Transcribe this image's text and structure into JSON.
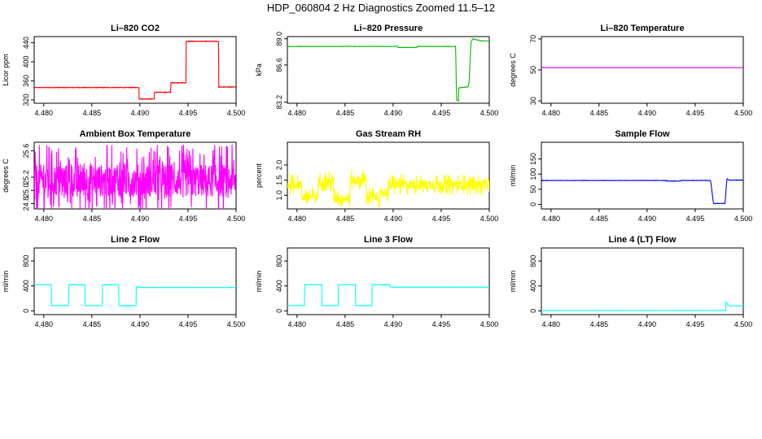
{
  "page_title": "HDP_060804  2 Hz Diagnostics Zoomed 11.5–12",
  "chart_data": [
    {
      "type": "line",
      "title": "Li–820 CO2",
      "ylabel": "Licor ppm",
      "color": "#ff0000",
      "xlim": [
        4.479,
        4.5
      ],
      "ylim": [
        313,
        453
      ],
      "xticks": [
        "4.480",
        "4.485",
        "4.490",
        "4.495",
        "4.500"
      ],
      "xtick_values": [
        4.48,
        4.485,
        4.49,
        4.495,
        4.5
      ],
      "yticks": [
        "320",
        "360",
        "400",
        "440"
      ],
      "ytick_values": [
        320,
        360,
        400,
        440
      ],
      "noise": 1.2,
      "series": [
        {
          "x": [
            4.479,
            4.4899,
            4.4899,
            4.4915,
            4.4915,
            4.4932,
            4.4932,
            4.4948,
            4.4948,
            4.4982,
            4.4982,
            4.5
          ],
          "y": [
            346,
            346,
            322,
            322,
            336,
            336,
            356,
            356,
            443,
            443,
            347,
            347
          ]
        }
      ]
    },
    {
      "type": "line",
      "title": "Li–820 Pressure",
      "ylabel": "kPa",
      "color": "#00bb00",
      "xlim": [
        4.479,
        4.5
      ],
      "ylim": [
        83.1,
        89.2
      ],
      "xticks": [
        "4.480",
        "4.485",
        "4.490",
        "4.495",
        "4.500"
      ],
      "xtick_values": [
        4.48,
        4.485,
        4.49,
        4.495,
        4.5
      ],
      "yticks": [
        "83.2",
        "86.6",
        "89.0"
      ],
      "ytick_values": [
        83.2,
        86.6,
        89.0
      ],
      "noise": 0.03,
      "series": [
        {
          "x": [
            4.479,
            4.4905,
            4.4905,
            4.4925,
            4.4925,
            4.4965,
            4.4966,
            4.4968,
            4.4968,
            4.4978,
            4.4979,
            4.4981,
            4.4983,
            4.4992,
            4.5
          ],
          "y": [
            88.3,
            88.3,
            88.2,
            88.2,
            88.3,
            88.3,
            83.4,
            83.3,
            84.5,
            84.6,
            85.0,
            88.7,
            89.0,
            88.8,
            88.8
          ]
        }
      ]
    },
    {
      "type": "line",
      "title": "Li–820 Temperature",
      "ylabel": "degrees C",
      "color": "#cc00cc",
      "xlim": [
        4.479,
        4.5
      ],
      "ylim": [
        28.5,
        71.5
      ],
      "xticks": [
        "4.480",
        "4.485",
        "4.490",
        "4.495",
        "4.500"
      ],
      "xtick_values": [
        4.48,
        4.485,
        4.49,
        4.495,
        4.5
      ],
      "yticks": [
        "30",
        "50",
        "70"
      ],
      "ytick_values": [
        30,
        50,
        70
      ],
      "noise": 0,
      "series": [
        {
          "x": [
            4.479,
            4.5
          ],
          "y": [
            51.5,
            51.5
          ]
        }
      ]
    },
    {
      "type": "line",
      "title": "Ambient Box Temperature",
      "ylabel": "degrees C",
      "color": "#ff00ff",
      "xlim": [
        4.479,
        4.5
      ],
      "ylim": [
        24.72,
        25.73
      ],
      "xticks": [
        "4.480",
        "4.485",
        "4.490",
        "4.495",
        "4.500"
      ],
      "xtick_values": [
        4.48,
        4.485,
        4.49,
        4.495,
        4.5
      ],
      "yticks": [
        "24.8",
        "25.0",
        "25.2",
        "25.6"
      ],
      "ytick_values": [
        24.8,
        25.0,
        25.2,
        25.6
      ],
      "noise_mode": "spiky",
      "noise": 0.55,
      "series": [
        {
          "x": [
            4.479,
            4.5
          ],
          "y": [
            25.15,
            25.15
          ]
        }
      ]
    },
    {
      "type": "line",
      "title": "Gas Stream RH",
      "ylabel": "percent",
      "color": "#ffff00",
      "xlim": [
        4.479,
        4.5
      ],
      "ylim": [
        0.55,
        2.75
      ],
      "xticks": [
        "4.480",
        "4.485",
        "4.490",
        "4.495",
        "4.500"
      ],
      "xtick_values": [
        4.48,
        4.485,
        4.49,
        4.495,
        4.5
      ],
      "yticks": [
        "1.0",
        "1.5",
        "2.0"
      ],
      "ytick_values": [
        1.0,
        1.5,
        2.0
      ],
      "noise_mode": "spiky",
      "noise": 0.35,
      "series": [
        {
          "x": [
            4.479,
            4.4805,
            4.4805,
            4.4822,
            4.4822,
            4.4838,
            4.4838,
            4.4855,
            4.4855,
            4.4872,
            4.4872,
            4.4888,
            4.4888,
            4.4895,
            4.4895,
            4.5
          ],
          "y": [
            1.35,
            1.35,
            0.95,
            0.95,
            1.45,
            1.45,
            0.9,
            0.9,
            1.5,
            1.5,
            0.95,
            0.95,
            1.1,
            1.1,
            1.35,
            1.35
          ]
        }
      ]
    },
    {
      "type": "line",
      "title": "Sample Flow",
      "ylabel": "ml/min",
      "color": "#0000ff",
      "xlim": [
        4.479,
        4.5
      ],
      "ylim": [
        -15,
        205
      ],
      "xticks": [
        "4.480",
        "4.485",
        "4.490",
        "4.495",
        "4.500"
      ],
      "xtick_values": [
        4.48,
        4.485,
        4.49,
        4.495,
        4.5
      ],
      "yticks": [
        "0",
        "50",
        "100",
        "150"
      ],
      "ytick_values": [
        0,
        50,
        100,
        150
      ],
      "noise": 1.2,
      "series": [
        {
          "x": [
            4.479,
            4.492,
            4.492,
            4.4935,
            4.4935,
            4.4966,
            4.4969,
            4.4981,
            4.4983,
            4.4985,
            4.5
          ],
          "y": [
            79,
            79,
            77,
            77,
            79,
            79,
            3,
            3,
            85,
            80,
            80
          ]
        }
      ]
    },
    {
      "type": "line",
      "title": "Line 2 Flow",
      "ylabel": "ml/min",
      "color": "#00ffff",
      "xlim": [
        4.479,
        4.5
      ],
      "ylim": [
        -60,
        1010
      ],
      "xticks": [
        "4.480",
        "4.485",
        "4.490",
        "4.495",
        "4.500"
      ],
      "xtick_values": [
        4.48,
        4.485,
        4.49,
        4.495,
        4.5
      ],
      "yticks": [
        "0",
        "400",
        "800"
      ],
      "ytick_values": [
        0,
        400,
        800
      ],
      "noise": 5,
      "series": [
        {
          "x": [
            4.479,
            4.4808,
            4.4808,
            4.4826,
            4.4826,
            4.4843,
            4.4843,
            4.4861,
            4.4861,
            4.4878,
            4.4878,
            4.4896,
            4.4896,
            4.49,
            4.5
          ],
          "y": [
            420,
            420,
            85,
            85,
            420,
            420,
            85,
            85,
            420,
            420,
            85,
            85,
            390,
            375,
            375
          ]
        }
      ]
    },
    {
      "type": "line",
      "title": "Line 3 Flow",
      "ylabel": "ml/min",
      "color": "#00ffff",
      "xlim": [
        4.479,
        4.5
      ],
      "ylim": [
        -60,
        1010
      ],
      "xticks": [
        "4.480",
        "4.485",
        "4.490",
        "4.495",
        "4.500"
      ],
      "xtick_values": [
        4.48,
        4.485,
        4.49,
        4.495,
        4.5
      ],
      "yticks": [
        "0",
        "400",
        "800"
      ],
      "ytick_values": [
        0,
        400,
        800
      ],
      "noise": 5,
      "series": [
        {
          "x": [
            4.479,
            4.4808,
            4.4808,
            4.4826,
            4.4826,
            4.4843,
            4.4843,
            4.4861,
            4.4861,
            4.4878,
            4.4878,
            4.4896,
            4.4896,
            4.49,
            4.5
          ],
          "y": [
            85,
            85,
            420,
            420,
            85,
            85,
            420,
            420,
            85,
            85,
            420,
            420,
            390,
            380,
            380
          ]
        }
      ]
    },
    {
      "type": "line",
      "title": "Line 4 (LT) Flow",
      "ylabel": "ml/min",
      "color": "#00ffff",
      "xlim": [
        4.479,
        4.5
      ],
      "ylim": [
        -60,
        1010
      ],
      "xticks": [
        "4.480",
        "4.485",
        "4.490",
        "4.495",
        "4.500"
      ],
      "xtick_values": [
        4.48,
        4.485,
        4.49,
        4.495,
        4.5
      ],
      "yticks": [
        "0",
        "400",
        "800"
      ],
      "ytick_values": [
        0,
        400,
        800
      ],
      "noise": 1.5,
      "series": [
        {
          "x": [
            4.479,
            4.4982,
            4.4982,
            4.4984,
            4.4986,
            4.5
          ],
          "y": [
            5,
            5,
            140,
            100,
            80,
            80
          ]
        }
      ]
    }
  ]
}
